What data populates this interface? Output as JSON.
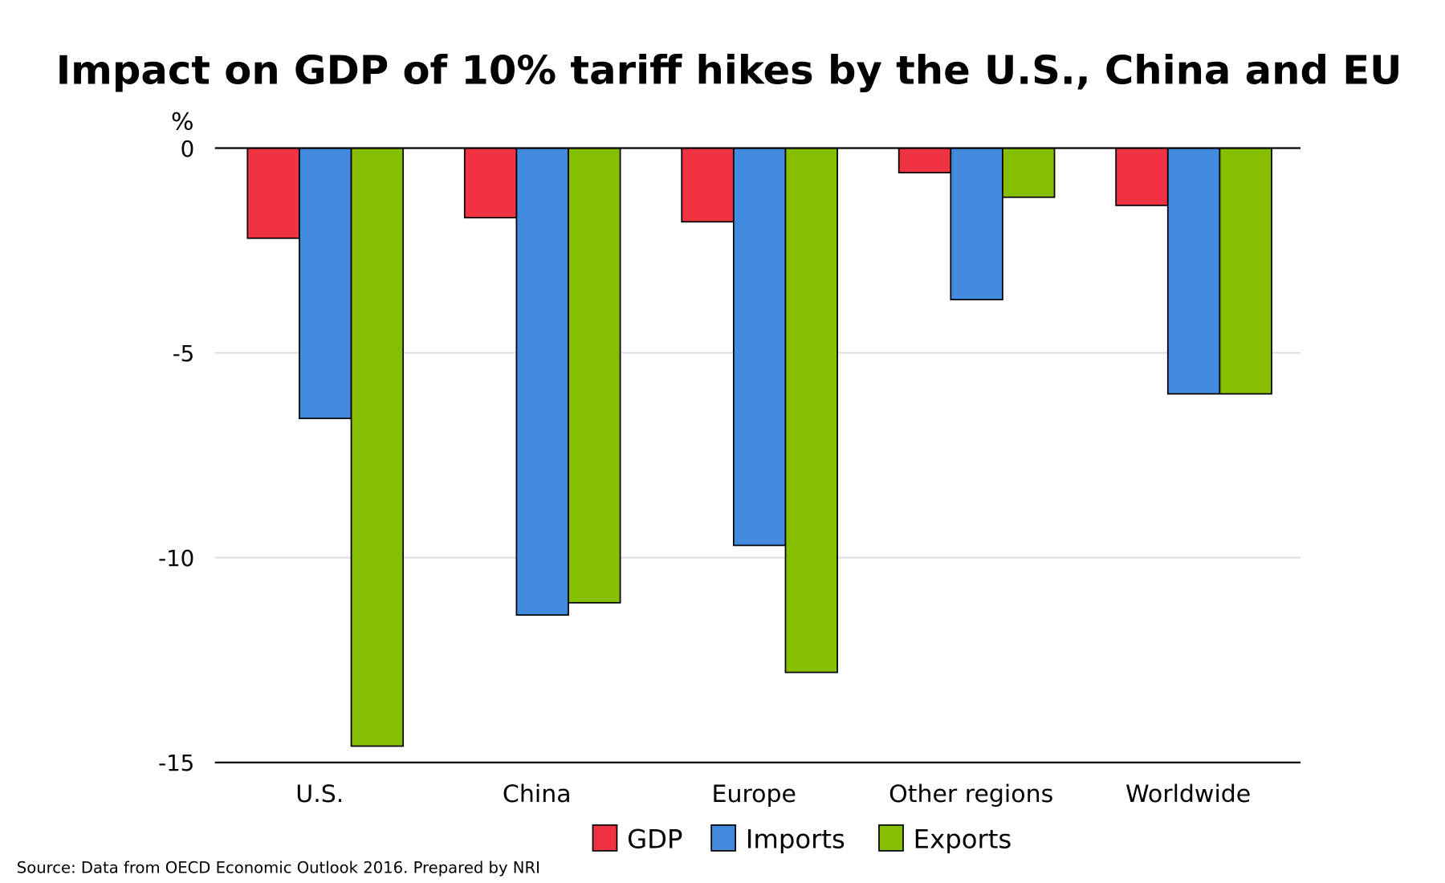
{
  "chart_data": {
    "type": "bar",
    "title": "Impact on GDP of 10% tariff hikes by the U.S., China and EU",
    "ylabel": "%",
    "xlabel": "",
    "ylim": [
      -15,
      0
    ],
    "yticks": [
      0,
      -5,
      -10,
      -15
    ],
    "ytick_labels": [
      "0",
      "-5",
      "-10",
      "-15"
    ],
    "grid": true,
    "legend_position": "bottom",
    "categories": [
      "U.S.",
      "China",
      "Europe",
      "Other regions",
      "Worldwide"
    ],
    "series": [
      {
        "name": "GDP",
        "color": "#f03342",
        "values": [
          -2.2,
          -1.7,
          -1.8,
          -0.6,
          -1.4
        ]
      },
      {
        "name": "Imports",
        "color": "#418ade",
        "values": [
          -6.6,
          -11.4,
          -9.7,
          -3.7,
          -6.0
        ]
      },
      {
        "name": "Exports",
        "color": "#86bf00",
        "values": [
          -14.6,
          -11.1,
          -12.8,
          -1.2,
          -6.0
        ]
      }
    ],
    "source": "Source: Data from OECD Economic Outlook 2016. Prepared by NRI"
  }
}
